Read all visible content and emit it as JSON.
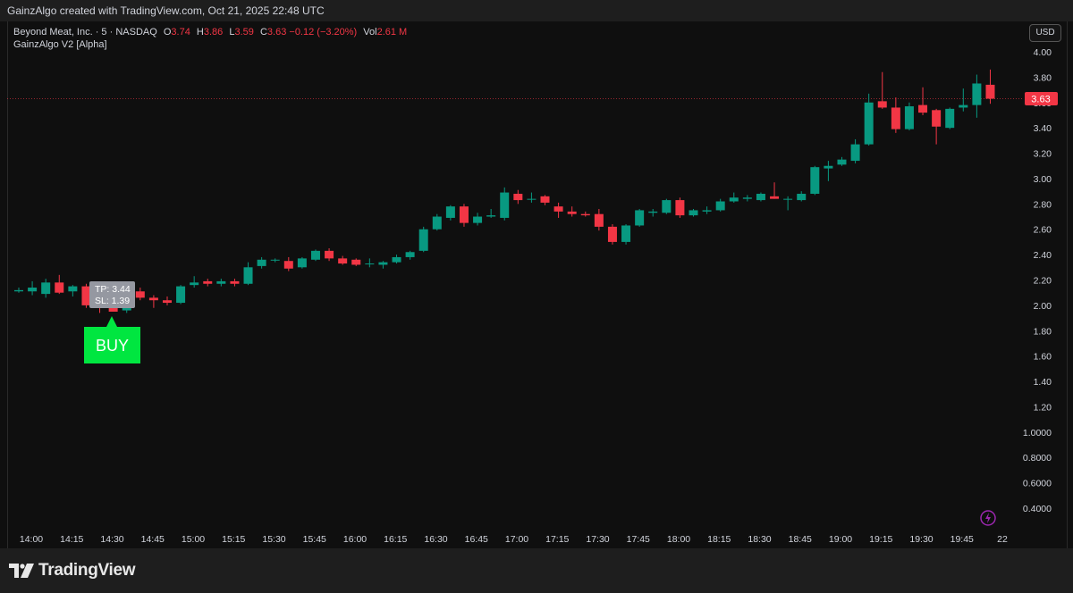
{
  "header": {
    "caption": "GainzAlgo created with TradingView.com, Oct 21, 2025 22:48 UTC"
  },
  "legend": {
    "symbol": "Beyond Meat, Inc. · 5 · NASDAQ",
    "o_label": "O",
    "o_value": "3.74",
    "h_label": "H",
    "h_value": "3.86",
    "l_label": "L",
    "l_value": "3.59",
    "c_label": "C",
    "c_value": "3.63",
    "change": "−0.12 (−3.20%)",
    "vol_label": "Vol",
    "vol_value": "2.61 M",
    "indicator": "GainzAlgo V2 [Alpha]"
  },
  "currency_button": "USD",
  "signal": {
    "label": "BUY",
    "tp": "TP: 3.44",
    "sl": "SL: 1.39"
  },
  "last_price": "3.63",
  "brand": "TradingView",
  "colors": {
    "up": "#089981",
    "down": "#f23645",
    "buy": "#00e640",
    "background": "#0f0f0f"
  },
  "icons": {
    "footer_logo": "tradingview-logo-icon",
    "replay": "lightning-icon"
  },
  "chart_data": {
    "type": "candlestick",
    "y_axis_ticks": [
      "4.00",
      "3.80",
      "3.60",
      "3.40",
      "3.20",
      "3.00",
      "2.80",
      "2.60",
      "2.40",
      "2.20",
      "2.00",
      "1.80",
      "1.60",
      "1.40",
      "1.20",
      "1.0000",
      "0.8000",
      "0.6000",
      "0.4000"
    ],
    "x_axis_ticks": [
      "14:00",
      "14:15",
      "14:30",
      "14:45",
      "15:00",
      "15:15",
      "15:30",
      "15:45",
      "16:00",
      "16:15",
      "16:30",
      "16:45",
      "17:00",
      "17:15",
      "17:30",
      "17:45",
      "18:00",
      "18:15",
      "18:30",
      "18:45",
      "19:00",
      "19:15",
      "19:30",
      "19:45",
      "22"
    ],
    "candles": [
      {
        "o": 2.11,
        "h": 2.14,
        "l": 2.1,
        "c": 2.12
      },
      {
        "o": 2.11,
        "h": 2.19,
        "l": 2.08,
        "c": 2.14
      },
      {
        "o": 2.09,
        "h": 2.21,
        "l": 2.06,
        "c": 2.18
      },
      {
        "o": 2.18,
        "h": 2.24,
        "l": 2.09,
        "c": 2.1
      },
      {
        "o": 2.11,
        "h": 2.16,
        "l": 2.07,
        "c": 2.15
      },
      {
        "o": 2.15,
        "h": 2.17,
        "l": 1.98,
        "c": 2.0
      },
      {
        "o": 2.0,
        "h": 2.06,
        "l": 1.94,
        "c": 1.98
      },
      {
        "o": 1.98,
        "h": 2.03,
        "l": 1.95,
        "c": 1.95
      },
      {
        "o": 1.96,
        "h": 2.05,
        "l": 1.94,
        "c": 2.0
      },
      {
        "o": 2.11,
        "h": 2.14,
        "l": 2.04,
        "c": 2.06
      },
      {
        "o": 2.06,
        "h": 2.08,
        "l": 1.98,
        "c": 2.04
      },
      {
        "o": 2.04,
        "h": 2.07,
        "l": 2.0,
        "c": 2.02
      },
      {
        "o": 2.02,
        "h": 2.16,
        "l": 2.01,
        "c": 2.15
      },
      {
        "o": 2.16,
        "h": 2.23,
        "l": 2.14,
        "c": 2.18
      },
      {
        "o": 2.19,
        "h": 2.21,
        "l": 2.15,
        "c": 2.17
      },
      {
        "o": 2.17,
        "h": 2.21,
        "l": 2.15,
        "c": 2.19
      },
      {
        "o": 2.19,
        "h": 2.21,
        "l": 2.15,
        "c": 2.17
      },
      {
        "o": 2.17,
        "h": 2.34,
        "l": 2.16,
        "c": 2.3
      },
      {
        "o": 2.31,
        "h": 2.38,
        "l": 2.29,
        "c": 2.36
      },
      {
        "o": 2.36,
        "h": 2.37,
        "l": 2.34,
        "c": 2.36
      },
      {
        "o": 2.35,
        "h": 2.38,
        "l": 2.27,
        "c": 2.29
      },
      {
        "o": 2.3,
        "h": 2.38,
        "l": 2.29,
        "c": 2.37
      },
      {
        "o": 2.36,
        "h": 2.44,
        "l": 2.35,
        "c": 2.43
      },
      {
        "o": 2.43,
        "h": 2.45,
        "l": 2.35,
        "c": 2.37
      },
      {
        "o": 2.37,
        "h": 2.39,
        "l": 2.32,
        "c": 2.33
      },
      {
        "o": 2.36,
        "h": 2.37,
        "l": 2.31,
        "c": 2.32
      },
      {
        "o": 2.33,
        "h": 2.37,
        "l": 2.3,
        "c": 2.33
      },
      {
        "o": 2.32,
        "h": 2.35,
        "l": 2.29,
        "c": 2.34
      },
      {
        "o": 2.34,
        "h": 2.4,
        "l": 2.33,
        "c": 2.38
      },
      {
        "o": 2.38,
        "h": 2.43,
        "l": 2.36,
        "c": 2.42
      },
      {
        "o": 2.43,
        "h": 2.62,
        "l": 2.42,
        "c": 2.6
      },
      {
        "o": 2.6,
        "h": 2.72,
        "l": 2.59,
        "c": 2.7
      },
      {
        "o": 2.69,
        "h": 2.79,
        "l": 2.67,
        "c": 2.78
      },
      {
        "o": 2.78,
        "h": 2.8,
        "l": 2.62,
        "c": 2.65
      },
      {
        "o": 2.65,
        "h": 2.73,
        "l": 2.63,
        "c": 2.7
      },
      {
        "o": 2.7,
        "h": 2.76,
        "l": 2.69,
        "c": 2.71
      },
      {
        "o": 2.69,
        "h": 2.93,
        "l": 2.67,
        "c": 2.89
      },
      {
        "o": 2.88,
        "h": 2.91,
        "l": 2.8,
        "c": 2.83
      },
      {
        "o": 2.84,
        "h": 2.89,
        "l": 2.81,
        "c": 2.84
      },
      {
        "o": 2.86,
        "h": 2.87,
        "l": 2.79,
        "c": 2.81
      },
      {
        "o": 2.78,
        "h": 2.81,
        "l": 2.69,
        "c": 2.74
      },
      {
        "o": 2.74,
        "h": 2.78,
        "l": 2.7,
        "c": 2.72
      },
      {
        "o": 2.72,
        "h": 2.74,
        "l": 2.7,
        "c": 2.71
      },
      {
        "o": 2.72,
        "h": 2.76,
        "l": 2.59,
        "c": 2.62
      },
      {
        "o": 2.62,
        "h": 2.64,
        "l": 2.48,
        "c": 2.5
      },
      {
        "o": 2.5,
        "h": 2.64,
        "l": 2.48,
        "c": 2.63
      },
      {
        "o": 2.63,
        "h": 2.76,
        "l": 2.62,
        "c": 2.75
      },
      {
        "o": 2.73,
        "h": 2.76,
        "l": 2.7,
        "c": 2.74
      },
      {
        "o": 2.73,
        "h": 2.84,
        "l": 2.72,
        "c": 2.83
      },
      {
        "o": 2.83,
        "h": 2.85,
        "l": 2.69,
        "c": 2.71
      },
      {
        "o": 2.71,
        "h": 2.76,
        "l": 2.7,
        "c": 2.75
      },
      {
        "o": 2.74,
        "h": 2.78,
        "l": 2.72,
        "c": 2.75
      },
      {
        "o": 2.75,
        "h": 2.84,
        "l": 2.74,
        "c": 2.82
      },
      {
        "o": 2.82,
        "h": 2.89,
        "l": 2.81,
        "c": 2.85
      },
      {
        "o": 2.84,
        "h": 2.87,
        "l": 2.82,
        "c": 2.85
      },
      {
        "o": 2.83,
        "h": 2.89,
        "l": 2.82,
        "c": 2.88
      },
      {
        "o": 2.86,
        "h": 2.97,
        "l": 2.84,
        "c": 2.84
      },
      {
        "o": 2.84,
        "h": 2.86,
        "l": 2.75,
        "c": 2.84
      },
      {
        "o": 2.83,
        "h": 2.9,
        "l": 2.82,
        "c": 2.88
      },
      {
        "o": 2.88,
        "h": 3.1,
        "l": 2.87,
        "c": 3.09
      },
      {
        "o": 3.08,
        "h": 3.14,
        "l": 2.98,
        "c": 3.1
      },
      {
        "o": 3.11,
        "h": 3.17,
        "l": 3.1,
        "c": 3.15
      },
      {
        "o": 3.14,
        "h": 3.31,
        "l": 3.12,
        "c": 3.27
      },
      {
        "o": 3.27,
        "h": 3.67,
        "l": 3.26,
        "c": 3.6
      },
      {
        "o": 3.61,
        "h": 3.84,
        "l": 3.55,
        "c": 3.56
      },
      {
        "o": 3.56,
        "h": 3.64,
        "l": 3.36,
        "c": 3.39
      },
      {
        "o": 3.39,
        "h": 3.6,
        "l": 3.38,
        "c": 3.57
      },
      {
        "o": 3.58,
        "h": 3.72,
        "l": 3.5,
        "c": 3.52
      },
      {
        "o": 3.54,
        "h": 3.55,
        "l": 3.27,
        "c": 3.41
      },
      {
        "o": 3.4,
        "h": 3.56,
        "l": 3.39,
        "c": 3.55
      },
      {
        "o": 3.56,
        "h": 3.71,
        "l": 3.53,
        "c": 3.58
      },
      {
        "o": 3.58,
        "h": 3.82,
        "l": 3.48,
        "c": 3.75
      },
      {
        "o": 3.74,
        "h": 3.86,
        "l": 3.59,
        "c": 3.63
      }
    ]
  }
}
